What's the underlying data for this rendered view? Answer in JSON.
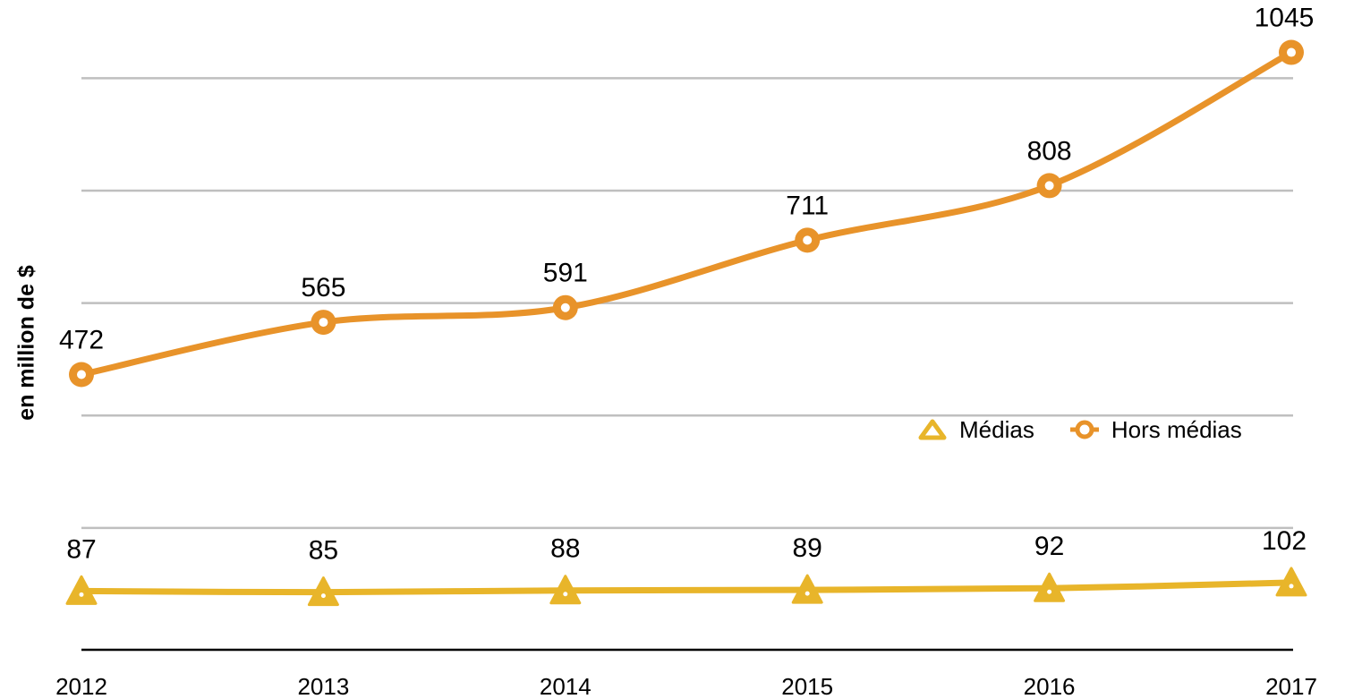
{
  "chart_data": {
    "type": "line",
    "title": "",
    "xlabel": "",
    "ylabel": "en million de $",
    "categories": [
      "2012",
      "2013",
      "2014",
      "2015",
      "2016",
      "2017"
    ],
    "series": [
      {
        "name": "Hors médias",
        "values": [
          472,
          565,
          591,
          711,
          808,
          1045
        ],
        "labels": [
          "472",
          "565",
          "591",
          "711",
          "808",
          "1045"
        ],
        "color": "#E8932A",
        "marker": "circle"
      },
      {
        "name": "Médias",
        "values": [
          87,
          85,
          88,
          89,
          92,
          102
        ],
        "labels": [
          "87",
          "85",
          "88",
          "89",
          "92",
          "102"
        ],
        "color": "#E8B52A",
        "marker": "triangle"
      }
    ],
    "ylim": [
      0,
      1100
    ],
    "grid": true,
    "smooth": true,
    "legend": {
      "position": "right",
      "entries": [
        "Médias",
        "Hors médias"
      ]
    }
  }
}
